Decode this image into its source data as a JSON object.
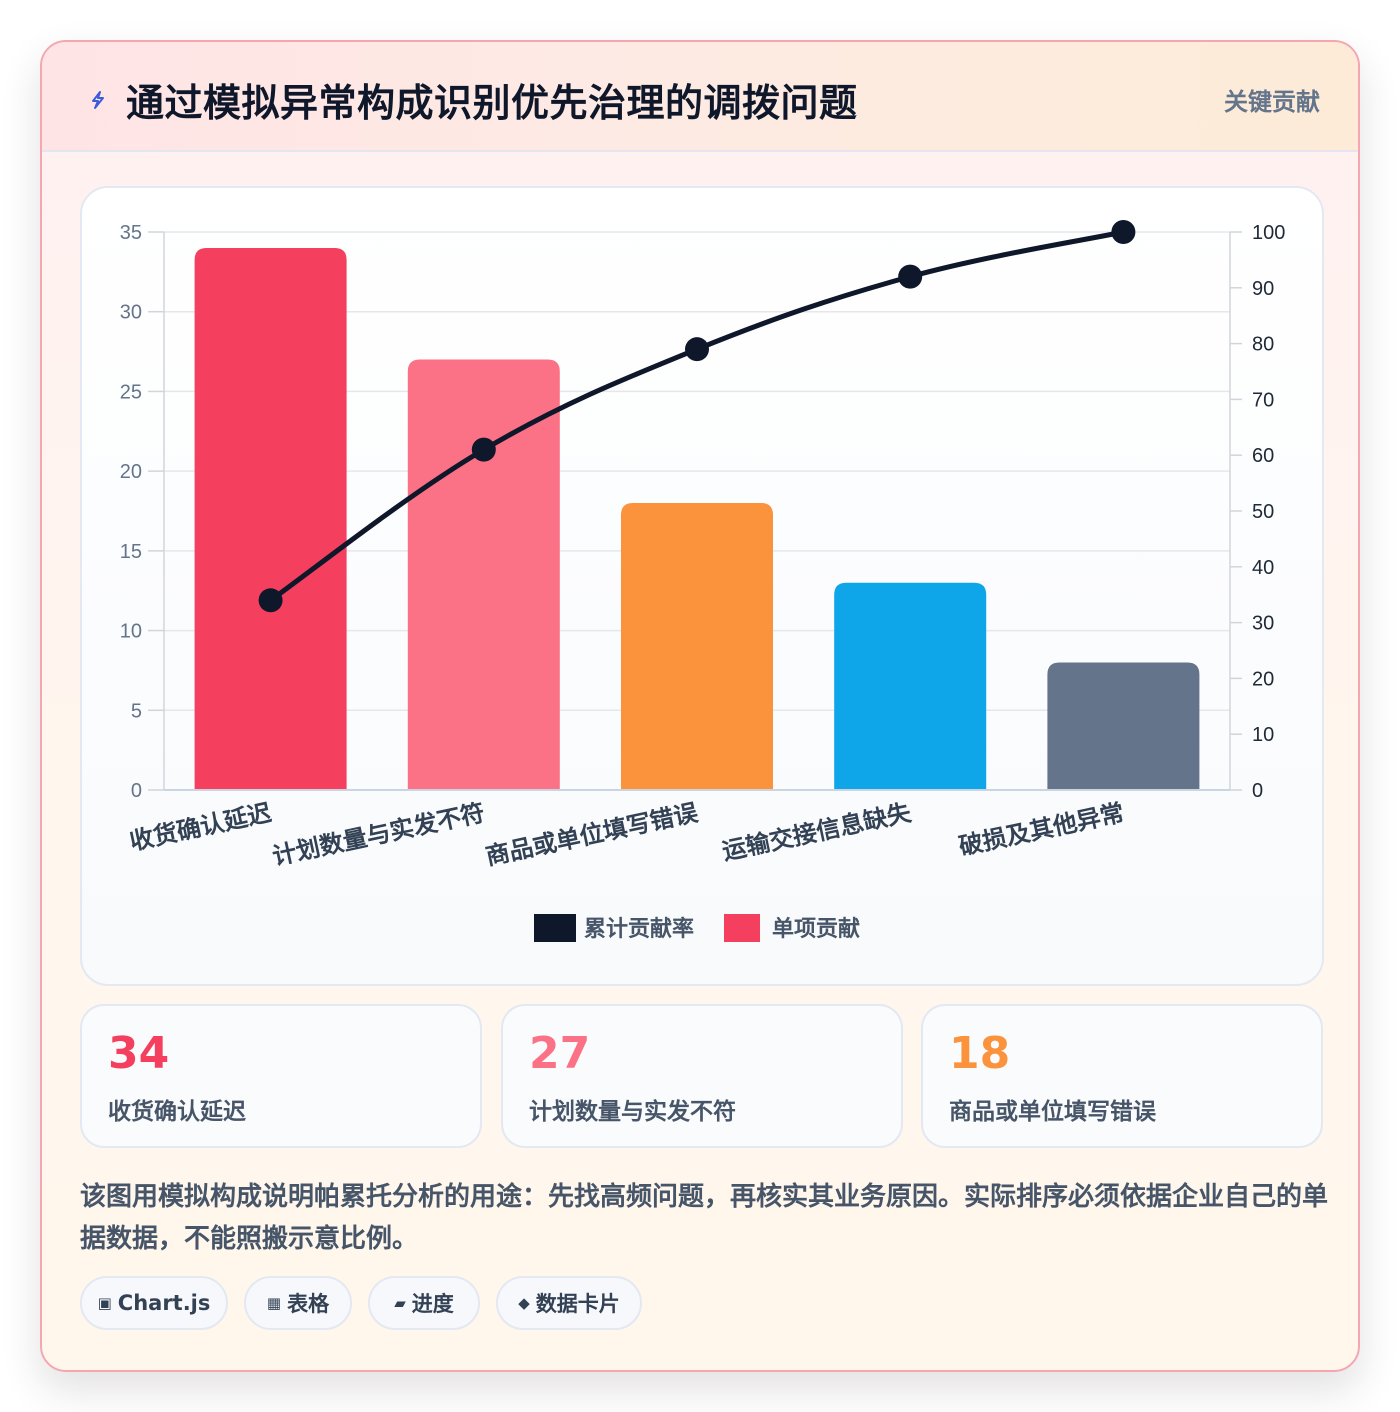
{
  "header": {
    "title": "通过模拟异常构成识别优先治理的调拨问题",
    "badge": "关键贡献"
  },
  "colors": {
    "bars": [
      "#f43f5e",
      "#fb7185",
      "#fb923c",
      "#0ea5e9",
      "#64748b"
    ],
    "line": "#0f172a"
  },
  "chart_data": {
    "type": "bar",
    "categories": [
      "收货确认延迟",
      "计划数量与实发不符",
      "商品或单位填写错误",
      "运输交接信息缺失",
      "破损及其他异常"
    ],
    "series": [
      {
        "name": "单项贡献",
        "type": "bar",
        "axis": "left",
        "values": [
          34,
          27,
          18,
          13,
          8
        ]
      },
      {
        "name": "累计贡献率",
        "type": "line",
        "axis": "right",
        "values": [
          34,
          61,
          79,
          92,
          100
        ]
      }
    ],
    "ylim": [
      0,
      35
    ],
    "yticks": [
      0,
      5,
      10,
      15,
      20,
      25,
      30,
      35
    ],
    "y2lim": [
      0,
      100
    ],
    "y2ticks": [
      0,
      10,
      20,
      30,
      40,
      50,
      60,
      70,
      80,
      90,
      100
    ],
    "legend": [
      "累计贡献率",
      "单项贡献"
    ],
    "legend_position": "bottom",
    "grid": true
  },
  "stats": [
    {
      "value": "34",
      "label": "收货确认延迟",
      "color": "#f43f5e"
    },
    {
      "value": "27",
      "label": "计划数量与实发不符",
      "color": "#fb7185"
    },
    {
      "value": "18",
      "label": "商品或单位填写错误",
      "color": "#fb923c"
    }
  ],
  "note": "该图用模拟构成说明帕累托分析的用途：先找高频问题，再核实其业务原因。实际排序必须依据企业自己的单据数据，不能照搬示意比例。",
  "tags": [
    {
      "icon": "▣",
      "label": "Chart.js"
    },
    {
      "icon": "▦",
      "label": "表格"
    },
    {
      "icon": "▰",
      "label": "进度"
    },
    {
      "icon": "◆",
      "label": "数据卡片"
    }
  ]
}
